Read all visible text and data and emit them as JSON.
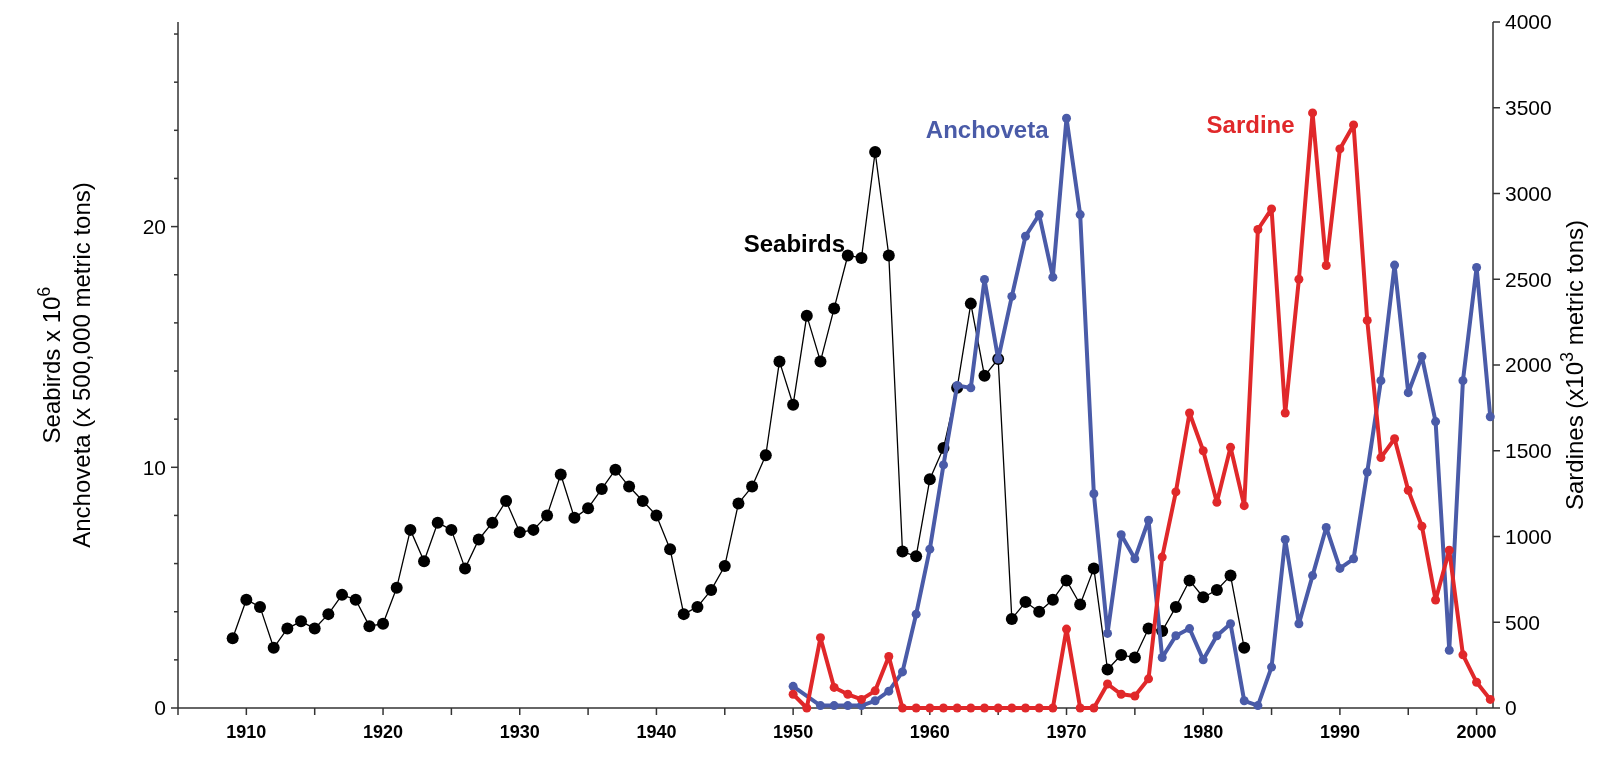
{
  "chart_data": {
    "type": "line",
    "ylabel": "Seabirds x 10$^{6}$\nAnchoveta (x 500,000 metric tons)",
    "y2label": "Sardines (x10$^{3}$ metric tons)",
    "xlim": [
      1905,
      2001.2
    ],
    "ylim": [
      0,
      28.5
    ],
    "y2lim": [
      0,
      4000
    ],
    "xticks": [
      {
        "value": 1905,
        "label": null
      },
      1910,
      {
        "value": 1915,
        "label": null
      },
      1920,
      {
        "value": 1925,
        "label": null
      },
      1930,
      {
        "value": 1935,
        "label": null
      },
      1940,
      {
        "value": 1945,
        "label": null
      },
      1950,
      {
        "value": 1955,
        "label": null
      },
      1960,
      {
        "value": 1965,
        "label": null
      },
      1970,
      {
        "value": 1975,
        "label": null
      },
      1980,
      {
        "value": 1985,
        "label": null
      },
      1990,
      {
        "value": 1995,
        "label": null
      },
      2000
    ],
    "yticks": [
      0,
      {
        "value": 2,
        "label": null
      },
      {
        "value": 4,
        "label": null
      },
      {
        "value": 6,
        "label": null
      },
      {
        "value": 8,
        "label": null
      },
      10,
      {
        "value": 12,
        "label": null
      },
      {
        "value": 14,
        "label": null
      },
      {
        "value": 16,
        "label": null
      },
      {
        "value": 18,
        "label": null
      },
      20,
      {
        "value": 22,
        "label": null
      },
      {
        "value": 24,
        "label": null
      },
      {
        "value": 26,
        "label": null
      },
      {
        "value": 28,
        "label": null
      }
    ],
    "y2ticks": [
      0,
      500,
      1000,
      1500,
      2000,
      2500,
      3000,
      3500,
      4000
    ],
    "marker": "circle",
    "series": [
      {
        "name": "Seabirds",
        "color": "#000000",
        "x": [
          1909,
          1910,
          1911,
          1912,
          1913,
          1914,
          1915,
          1916,
          1917,
          1918,
          1919,
          1920,
          1921,
          1922,
          1923,
          1924,
          1925,
          1926,
          1927,
          1928,
          1929,
          1930,
          1931,
          1932,
          1933,
          1934,
          1935,
          1936,
          1937,
          1938,
          1939,
          1940,
          1941,
          1942,
          1943,
          1944,
          1945,
          1946,
          1947,
          1948,
          1949,
          1950,
          1951,
          1952,
          1953,
          1954,
          1955,
          1956,
          1957,
          1958,
          1959,
          1960,
          1961,
          1962,
          1963,
          1964,
          1965,
          1966,
          1967,
          1968,
          1969,
          1970,
          1971,
          1972,
          1973,
          1974,
          1975,
          1976,
          1977,
          1978,
          1979,
          1980,
          1981,
          1982,
          1983
        ],
        "values": [
          2.9,
          4.5,
          4.2,
          2.5,
          3.3,
          3.6,
          3.3,
          3.9,
          4.7,
          4.5,
          3.4,
          3.5,
          5.0,
          7.4,
          6.1,
          7.7,
          7.4,
          5.8,
          7.0,
          7.7,
          8.6,
          7.3,
          7.4,
          8.0,
          9.7,
          7.9,
          8.3,
          9.1,
          9.9,
          9.2,
          8.6,
          8.0,
          6.6,
          3.9,
          4.2,
          4.9,
          5.9,
          8.5,
          9.2,
          10.5,
          14.4,
          12.6,
          16.3,
          14.4,
          16.6,
          18.8,
          18.7,
          23.1,
          18.8,
          6.5,
          6.3,
          9.5,
          10.8,
          13.3,
          16.8,
          13.8,
          14.5,
          3.7,
          4.4,
          4.0,
          4.5,
          5.3,
          4.3,
          5.8,
          1.6,
          2.2,
          2.1,
          3.3,
          3.2,
          4.2,
          5.3,
          4.6,
          4.9,
          5.5,
          2.5
        ]
      },
      {
        "name": "Anchoveta",
        "color": "#4a5ba8",
        "x": [
          1950,
          1952,
          1953,
          1954,
          1955,
          1956,
          1957,
          1958,
          1959,
          1960,
          1961,
          1962,
          1963,
          1964,
          1965,
          1966,
          1967,
          1968,
          1969,
          1970,
          1971,
          1972,
          1973,
          1974,
          1975,
          1976,
          1977,
          1978,
          1979,
          1980,
          1981,
          1982,
          1983,
          1984,
          1985,
          1986,
          1987,
          1988,
          1989,
          1990,
          1991,
          1992,
          1993,
          1994,
          1995,
          1996,
          1997,
          1998,
          1999,
          2000,
          2001
        ],
        "values": [
          0.9,
          0.1,
          0.1,
          0.1,
          0.1,
          0.3,
          0.7,
          1.5,
          3.9,
          6.6,
          10.1,
          13.4,
          13.3,
          17.8,
          14.5,
          17.1,
          19.6,
          20.5,
          17.9,
          24.5,
          20.5,
          8.9,
          3.1,
          7.2,
          6.2,
          7.8,
          2.1,
          3.0,
          3.3,
          2.0,
          3.0,
          3.5,
          0.3,
          0.1,
          1.7,
          7.0,
          3.5,
          5.5,
          7.5,
          5.8,
          6.2,
          9.8,
          13.6,
          18.4,
          13.1,
          14.6,
          11.9,
          2.4,
          13.6,
          18.3,
          12.1
        ]
      },
      {
        "name": "Sardine",
        "color": "#e0282a",
        "axis": "y2",
        "x": [
          1950,
          1951,
          1952,
          1953,
          1954,
          1955,
          1956,
          1957,
          1958,
          1959,
          1960,
          1961,
          1962,
          1963,
          1964,
          1965,
          1966,
          1967,
          1968,
          1969,
          1970,
          1971,
          1972,
          1973,
          1974,
          1975,
          1976,
          1977,
          1978,
          1979,
          1980,
          1981,
          1982,
          1983,
          1984,
          1985,
          1986,
          1987,
          1988,
          1989,
          1990,
          1991,
          1992,
          1993,
          1994,
          1995,
          1996,
          1997,
          1998,
          1999,
          2000,
          2001
        ],
        "values": [
          80,
          0,
          410,
          120,
          80,
          50,
          100,
          300,
          0,
          0,
          0,
          0,
          0,
          0,
          0,
          0,
          0,
          0,
          0,
          0,
          460,
          0,
          0,
          140,
          80,
          70,
          170,
          880,
          1260,
          1720,
          1500,
          1200,
          1520,
          1180,
          2790,
          2910,
          1720,
          2500,
          3470,
          2580,
          3260,
          3400,
          2260,
          1460,
          1570,
          1270,
          1060,
          630,
          920,
          310,
          150,
          50
        ]
      }
    ]
  }
}
